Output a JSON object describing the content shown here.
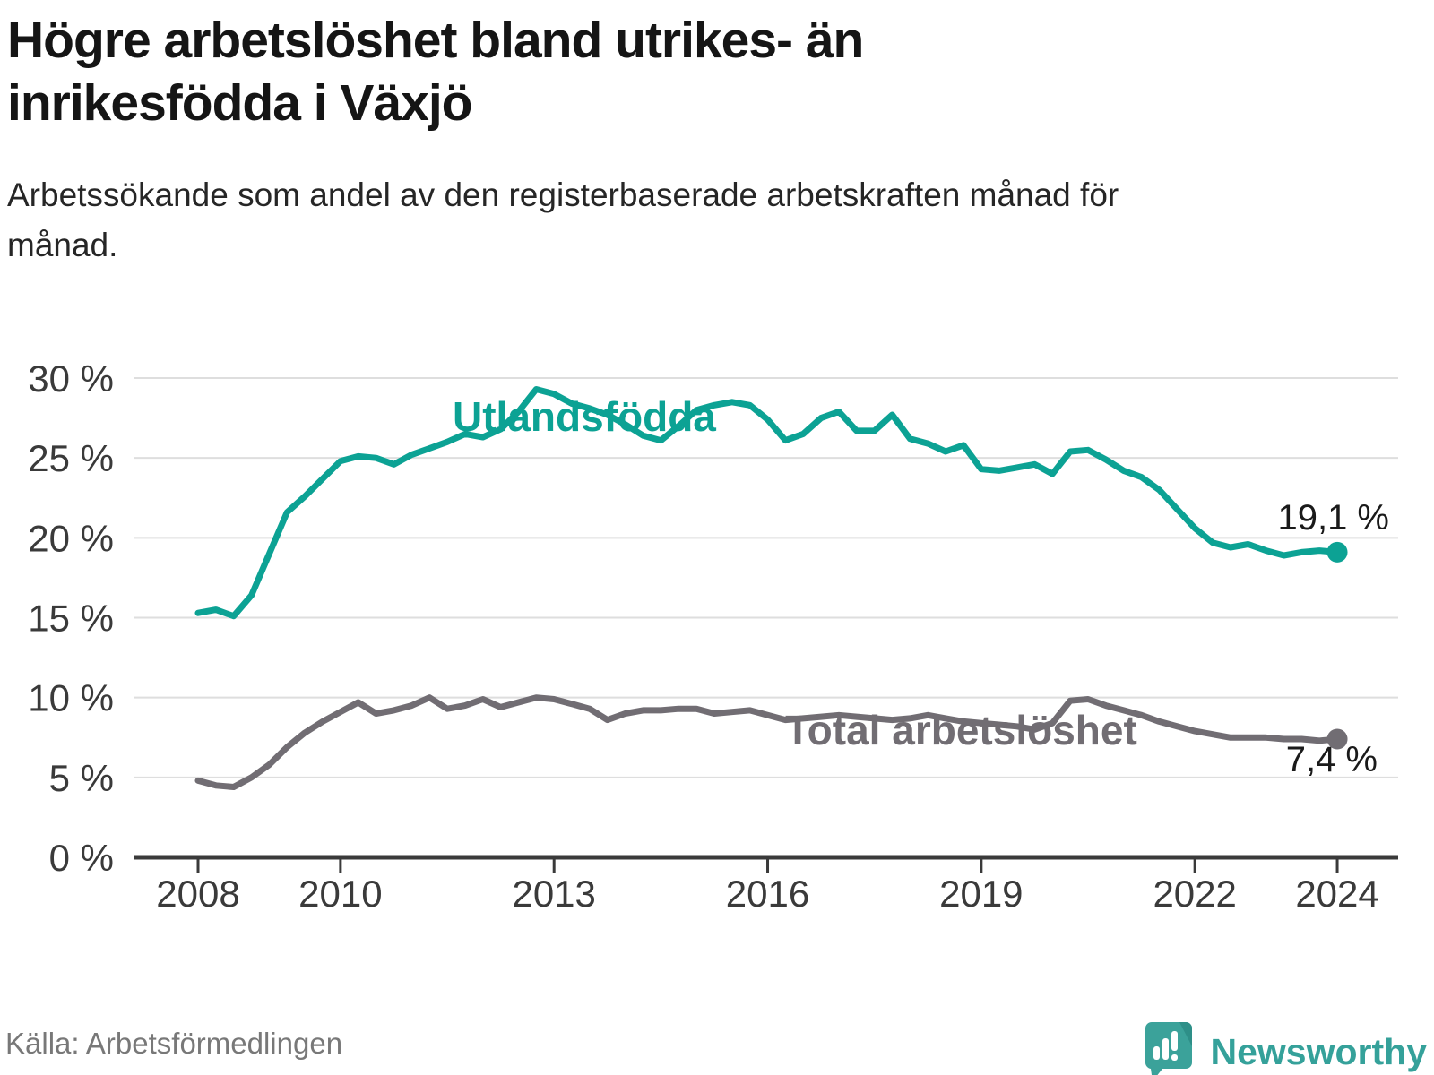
{
  "header": {
    "title": "Högre arbetslöshet bland utrikes- än inrikesfödda i Växjö",
    "subtitle": "Arbetssökande som andel av den registerbaserade arbetskraften månad för månad."
  },
  "footer": {
    "source": "Källa: Arbetsförmedlingen",
    "brand": "Newsworthy",
    "logo_icon": "speech-bubble-bar-chart-icon"
  },
  "colors": {
    "teal_line": "#0CA294",
    "gray_line": "#716D73",
    "gridline": "#DEDEDE",
    "axis": "#3A3A3A",
    "tick_label": "#3A3A3A",
    "value_label": "#1A1A1A",
    "source_text": "#787878",
    "brand_teal": "#35A19A",
    "background": "#FFFFFF"
  },
  "chart_data": {
    "type": "line",
    "title": "Högre arbetslöshet bland utrikes- än inrikesfödda i Växjö",
    "subtitle": "Arbetssökande som andel av den registerbaserade arbetskraften månad för månad.",
    "xlabel": "",
    "ylabel": "",
    "ylim": [
      0,
      30
    ],
    "xlim": [
      2008,
      2024.85
    ],
    "grid": "horizontal",
    "legend_position": "inline-labels-on-lines",
    "yticks": [
      {
        "value": 0,
        "label": "0 %"
      },
      {
        "value": 5,
        "label": "5 %"
      },
      {
        "value": 10,
        "label": "10 %"
      },
      {
        "value": 15,
        "label": "15 %"
      },
      {
        "value": 20,
        "label": "20 %"
      },
      {
        "value": 25,
        "label": "25 %"
      },
      {
        "value": 30,
        "label": "30 %"
      }
    ],
    "xticks": [
      {
        "value": 2008,
        "label": "2008"
      },
      {
        "value": 2010,
        "label": "2010"
      },
      {
        "value": 2013,
        "label": "2013"
      },
      {
        "value": 2016,
        "label": "2016"
      },
      {
        "value": 2019,
        "label": "2019"
      },
      {
        "value": 2022,
        "label": "2022"
      },
      {
        "value": 2024,
        "label": "2024"
      }
    ],
    "x": [
      2008.0,
      2008.25,
      2008.5,
      2008.75,
      2009.0,
      2009.25,
      2009.5,
      2009.75,
      2010.0,
      2010.25,
      2010.5,
      2010.75,
      2011.0,
      2011.25,
      2011.5,
      2011.75,
      2012.0,
      2012.25,
      2012.5,
      2012.75,
      2013.0,
      2013.25,
      2013.5,
      2013.75,
      2014.0,
      2014.25,
      2014.5,
      2014.75,
      2015.0,
      2015.25,
      2015.5,
      2015.75,
      2016.0,
      2016.25,
      2016.5,
      2016.75,
      2017.0,
      2017.25,
      2017.5,
      2017.75,
      2018.0,
      2018.25,
      2018.5,
      2018.75,
      2019.0,
      2019.25,
      2019.5,
      2019.75,
      2020.0,
      2020.25,
      2020.5,
      2020.75,
      2021.0,
      2021.25,
      2021.5,
      2021.75,
      2022.0,
      2022.25,
      2022.5,
      2022.75,
      2023.0,
      2023.25,
      2023.5,
      2023.75,
      2024.0
    ],
    "series": [
      {
        "name": "Utlandsfödda",
        "color": "#0CA294",
        "end_label": "19,1 %",
        "end_value": 19.1,
        "values": [
          15.3,
          15.5,
          15.1,
          16.4,
          19.0,
          21.6,
          22.6,
          23.7,
          24.8,
          25.1,
          25.0,
          24.6,
          25.2,
          25.6,
          26.0,
          26.5,
          26.3,
          26.8,
          27.9,
          29.3,
          29.0,
          28.4,
          28.1,
          27.7,
          27.1,
          26.4,
          26.1,
          27.0,
          28.0,
          28.3,
          28.5,
          28.3,
          27.4,
          26.1,
          26.5,
          27.5,
          27.9,
          26.7,
          26.7,
          27.7,
          26.2,
          25.9,
          25.4,
          25.8,
          24.3,
          24.2,
          24.4,
          24.6,
          24.0,
          25.4,
          25.5,
          24.9,
          24.2,
          23.8,
          23.0,
          21.8,
          20.6,
          19.7,
          19.4,
          19.6,
          19.2,
          18.9,
          19.1,
          19.2,
          19.1
        ]
      },
      {
        "name": "Total arbetslöshet",
        "color": "#716D73",
        "end_label": "7,4 %",
        "end_value": 7.4,
        "values": [
          4.8,
          4.5,
          4.4,
          5.0,
          5.8,
          6.9,
          7.8,
          8.5,
          9.1,
          9.7,
          9.0,
          9.2,
          9.5,
          10.0,
          9.3,
          9.5,
          9.9,
          9.4,
          9.7,
          10.0,
          9.9,
          9.6,
          9.3,
          8.6,
          9.0,
          9.2,
          9.2,
          9.3,
          9.3,
          9.0,
          9.1,
          9.2,
          8.9,
          8.6,
          8.7,
          8.8,
          8.9,
          8.8,
          8.7,
          8.6,
          8.7,
          8.9,
          8.7,
          8.5,
          8.4,
          8.3,
          8.2,
          8.0,
          8.4,
          9.8,
          9.9,
          9.5,
          9.2,
          8.9,
          8.5,
          8.2,
          7.9,
          7.7,
          7.5,
          7.5,
          7.5,
          7.4,
          7.4,
          7.3,
          7.4
        ]
      }
    ]
  }
}
